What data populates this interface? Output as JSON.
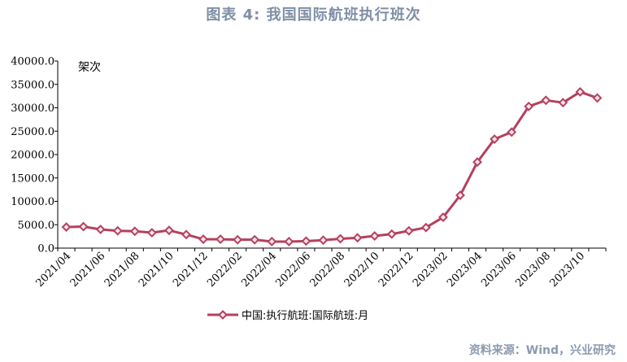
{
  "title": "图表 4:   我国国际航班执行班次",
  "source": "资料来源：Wind，兴业研究",
  "chart_data": {
    "type": "line",
    "ylabel": "架次",
    "ylim": [
      0,
      40000
    ],
    "yticks": [
      0,
      5000,
      10000,
      15000,
      20000,
      25000,
      30000,
      35000,
      40000
    ],
    "ytick_labels": [
      "0.0",
      "5000.0",
      "10000.0",
      "15000.0",
      "20000.0",
      "25000.0",
      "30000.0",
      "35000.0",
      "40000.0"
    ],
    "x": [
      "2021/04",
      "2021/05",
      "2021/06",
      "2021/07",
      "2021/08",
      "2021/09",
      "2021/10",
      "2021/11",
      "2021/12",
      "2022/01",
      "2022/02",
      "2022/03",
      "2022/04",
      "2022/05",
      "2022/06",
      "2022/07",
      "2022/08",
      "2022/09",
      "2022/10",
      "2022/11",
      "2022/12",
      "2023/01",
      "2023/02",
      "2023/03",
      "2023/04",
      "2023/05",
      "2023/06",
      "2023/07",
      "2023/08",
      "2023/09",
      "2023/10",
      "2023/11"
    ],
    "xtick_labels": [
      "2021/04",
      "2021/06",
      "2021/08",
      "2021/10",
      "2021/12",
      "2022/02",
      "2022/04",
      "2022/06",
      "2022/08",
      "2022/10",
      "2022/12",
      "2023/02",
      "2023/04",
      "2023/06",
      "2023/08",
      "2023/10"
    ],
    "series": [
      {
        "name": "中国:执行航班:国际航班:月",
        "color": "#b5405e",
        "marker": "diamond",
        "values": [
          4500,
          4600,
          4000,
          3700,
          3600,
          3300,
          3800,
          2900,
          1900,
          1900,
          1800,
          1800,
          1400,
          1400,
          1500,
          1700,
          2000,
          2200,
          2600,
          3000,
          3700,
          4400,
          6600,
          11300,
          18400,
          23300,
          24800,
          30300,
          31600,
          31100,
          33400,
          32100
        ]
      }
    ],
    "grid": false,
    "legend": "bottom-center"
  }
}
